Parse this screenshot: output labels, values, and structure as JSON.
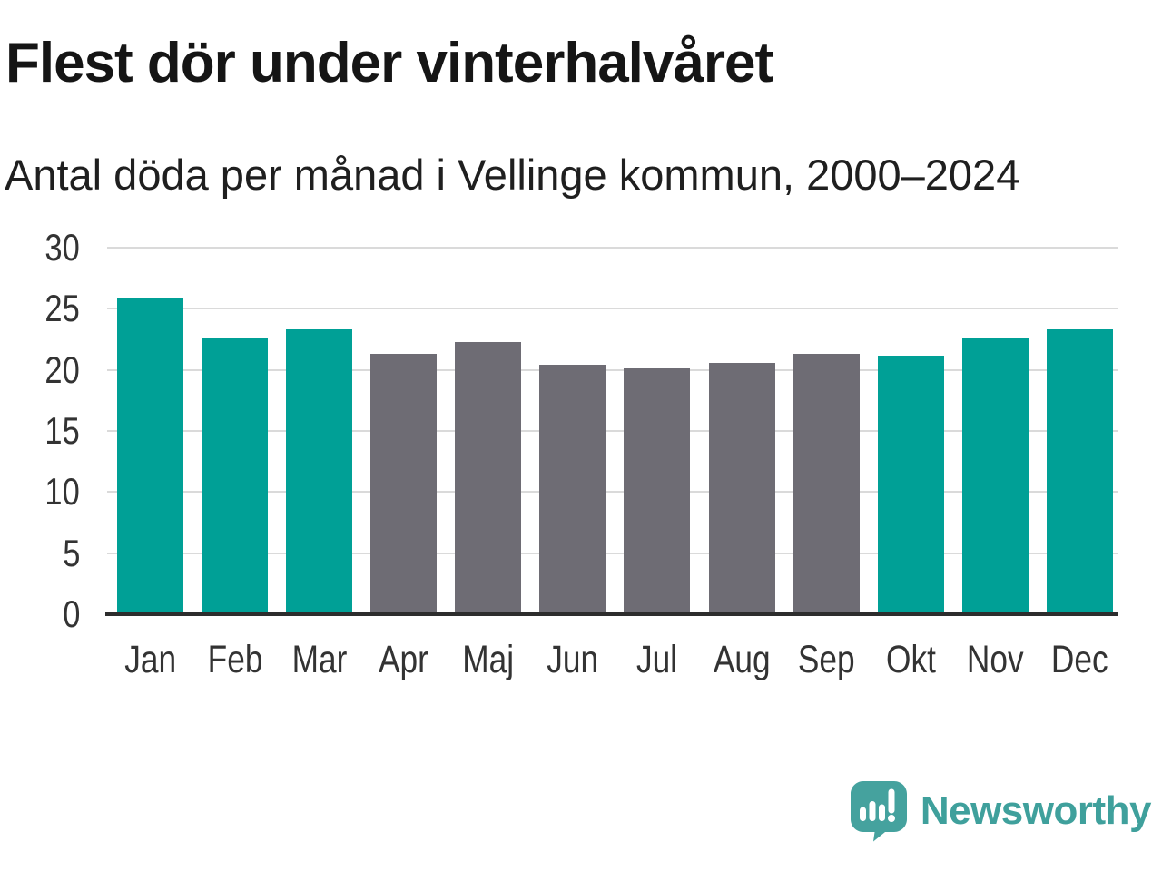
{
  "header": {
    "title": "Flest dör under vinterhalvåret",
    "subtitle": "Antal döda per månad i Vellinge kommun, 2000–2024"
  },
  "chart_data": {
    "type": "bar",
    "title": "Flest dör under vinterhalvåret",
    "subtitle": "Antal döda per månad i Vellinge kommun, 2000–2024",
    "categories": [
      "Jan",
      "Feb",
      "Mar",
      "Apr",
      "Maj",
      "Jun",
      "Jul",
      "Aug",
      "Sep",
      "Okt",
      "Nov",
      "Dec"
    ],
    "values": [
      25.9,
      22.6,
      23.3,
      21.3,
      22.3,
      20.4,
      20.1,
      20.6,
      21.3,
      21.2,
      22.6,
      23.3
    ],
    "bar_groups": [
      "winter",
      "winter",
      "winter",
      "summer",
      "summer",
      "summer",
      "summer",
      "summer",
      "summer",
      "winter",
      "winter",
      "winter"
    ],
    "group_colors": {
      "winter": "#00A096",
      "summer": "#6E6C74"
    },
    "xlabel": "",
    "ylabel": "",
    "ylim": [
      0,
      30
    ],
    "yticks": [
      0,
      5,
      10,
      15,
      20,
      25,
      30
    ],
    "grid": "horizontal-only",
    "legend": "none"
  },
  "footer": {
    "logo_text": "Newsworthy",
    "logo_icon": "speech-bubble-bar-chart",
    "logo_icon_color": "#45A29E",
    "logo_text_color": "#3FA09C"
  },
  "colors": {
    "background": "#FFFFFF",
    "gridline": "#DADADA",
    "axis_line": "#2D2D2D",
    "tick_text": "#333333"
  }
}
